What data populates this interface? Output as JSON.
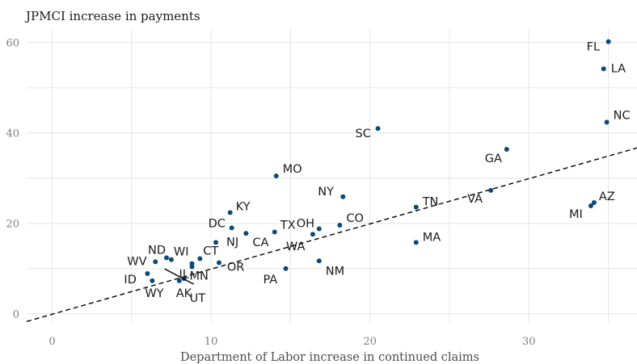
{
  "chart_data": {
    "type": "scatter",
    "title": "",
    "ylabel": "JPMCI increase in payments",
    "xlabel": "Department of Labor increase in continued claims",
    "xlim": [
      -1.6,
      36.8
    ],
    "ylim": [
      -2,
      63
    ],
    "x_ticks": [
      0,
      10,
      20,
      30
    ],
    "y_ticks": [
      0,
      20,
      40,
      60
    ],
    "grid": true,
    "point_color": "#0b4a78",
    "trend_line": {
      "style": "dashed",
      "color": "#000000",
      "x": [
        -1.6,
        36.8
      ],
      "y": [
        -1.7,
        36.7
      ]
    },
    "points": [
      {
        "label": "FL",
        "x": 35.0,
        "y": 60.2
      },
      {
        "label": "LA",
        "x": 34.7,
        "y": 54.2
      },
      {
        "label": "NC",
        "x": 34.9,
        "y": 42.4
      },
      {
        "label": "SC",
        "x": 20.5,
        "y": 41.0
      },
      {
        "label": "GA",
        "x": 28.6,
        "y": 36.4
      },
      {
        "label": "MO",
        "x": 14.1,
        "y": 30.5
      },
      {
        "label": "VA",
        "x": 27.6,
        "y": 27.3
      },
      {
        "label": "NY",
        "x": 18.3,
        "y": 25.9
      },
      {
        "label": "AZ",
        "x": 34.1,
        "y": 24.6
      },
      {
        "label": "MI",
        "x": 33.9,
        "y": 23.9
      },
      {
        "label": "TN",
        "x": 22.9,
        "y": 23.6
      },
      {
        "label": "KY",
        "x": 11.2,
        "y": 22.4
      },
      {
        "label": "CO",
        "x": 18.1,
        "y": 19.6
      },
      {
        "label": "DC",
        "x": 11.3,
        "y": 19.0
      },
      {
        "label": "OH",
        "x": 16.8,
        "y": 18.8
      },
      {
        "label": "TX",
        "x": 14.0,
        "y": 18.1
      },
      {
        "label": "CA",
        "x": 12.2,
        "y": 17.8
      },
      {
        "label": "WA",
        "x": 16.4,
        "y": 17.6
      },
      {
        "label": "NJ",
        "x": 10.3,
        "y": 15.8
      },
      {
        "label": "MA",
        "x": 22.9,
        "y": 15.8
      },
      {
        "label": "ND",
        "x": 7.2,
        "y": 12.4
      },
      {
        "label": "CT",
        "x": 9.3,
        "y": 12.2
      },
      {
        "label": "WI",
        "x": 7.5,
        "y": 12.0
      },
      {
        "label": "NM",
        "x": 16.8,
        "y": 11.7
      },
      {
        "label": "WV",
        "x": 6.5,
        "y": 11.5
      },
      {
        "label": "OR",
        "x": 10.5,
        "y": 11.3
      },
      {
        "label": "MN",
        "x": 8.8,
        "y": 11.1
      },
      {
        "label": "IL",
        "x": 8.8,
        "y": 10.4
      },
      {
        "label": "PA",
        "x": 14.7,
        "y": 10.0
      },
      {
        "label": "ID",
        "x": 6.0,
        "y": 8.9
      },
      {
        "label": "UT",
        "x": 8.3,
        "y": 7.8
      },
      {
        "label": "WY",
        "x": 6.3,
        "y": 7.3
      },
      {
        "label": "AK",
        "x": 8.0,
        "y": 7.3
      }
    ]
  }
}
